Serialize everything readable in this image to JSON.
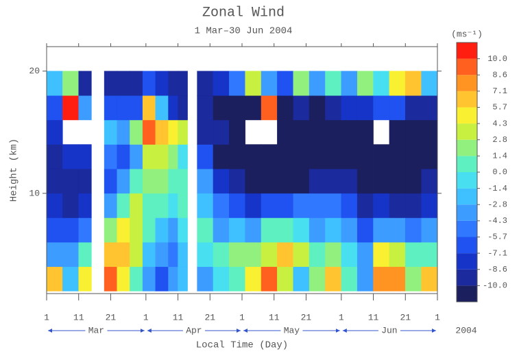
{
  "chart_data": {
    "type": "heatmap",
    "title": "Zonal Wind",
    "subtitle": "1 Mar–30 Jun 2004",
    "x_label": "Local Time (Day)",
    "y_label": "Height (km)",
    "year_label": "2004",
    "xlim": [
      0,
      122
    ],
    "xticks": [
      {
        "value": 0,
        "label": "1"
      },
      {
        "value": 10,
        "label": "11"
      },
      {
        "value": 20,
        "label": "21"
      },
      {
        "value": 31,
        "label": "1"
      },
      {
        "value": 41,
        "label": "11"
      },
      {
        "value": 51,
        "label": "21"
      },
      {
        "value": 61,
        "label": "1"
      },
      {
        "value": 71,
        "label": "11"
      },
      {
        "value": 81,
        "label": "21"
      },
      {
        "value": 92,
        "label": "1"
      },
      {
        "value": 102,
        "label": "11"
      },
      {
        "value": 112,
        "label": "21"
      },
      {
        "value": 122,
        "label": "1"
      }
    ],
    "months": [
      {
        "label": "Mar",
        "start": 0,
        "end": 31
      },
      {
        "label": "Apr",
        "start": 31,
        "end": 61
      },
      {
        "label": "May",
        "start": 61,
        "end": 92
      },
      {
        "label": "Jun",
        "start": 92,
        "end": 122
      }
    ],
    "ylim": [
      1.8,
      22
    ],
    "yticks": [
      10,
      20
    ],
    "xbins": [
      0,
      5,
      10,
      14,
      18,
      22,
      26,
      30,
      34,
      38,
      41,
      44,
      47,
      52,
      57,
      62,
      67,
      72,
      77,
      82,
      87,
      92,
      97,
      102,
      107,
      112,
      117,
      122
    ],
    "ybins": [
      2,
      4,
      6,
      8,
      10,
      12,
      14,
      16,
      18,
      20
    ],
    "values": [
      [
        6,
        -4,
        -6,
        -8,
        -9,
        -9,
        -8,
        -6,
        -2
      ],
      [
        -2,
        -3,
        -7,
        -9,
        -9,
        -8,
        null,
        10,
        2
      ],
      [
        5,
        0,
        -5,
        -8,
        -9,
        -8,
        null,
        -4,
        -9
      ],
      [
        null,
        null,
        null,
        null,
        null,
        null,
        null,
        null,
        null
      ],
      [
        9,
        6,
        2,
        -3,
        -6,
        -5,
        -2,
        -6,
        -9
      ],
      [
        5,
        7,
        5,
        1,
        -4,
        -6,
        -4,
        -7,
        -9
      ],
      [
        0,
        3,
        4,
        4,
        1,
        -3,
        2,
        -6,
        -9
      ],
      [
        -4,
        -2,
        0,
        1,
        2,
        3,
        9,
        7,
        -6
      ],
      [
        -6,
        -4,
        -2,
        0,
        2,
        4,
        6,
        -2,
        -8
      ],
      [
        -4,
        -5,
        -3,
        -1,
        0,
        2,
        5,
        -8,
        -9
      ],
      [
        -2,
        -2,
        -1,
        0,
        1,
        -1,
        3,
        -9,
        -9
      ],
      [
        null,
        null,
        null,
        null,
        null,
        null,
        null,
        null,
        null
      ],
      [
        -3,
        -1,
        0,
        -2,
        -4,
        -7,
        -9,
        -10,
        -9
      ],
      [
        -1,
        0,
        -3,
        -5,
        -8,
        -11,
        -10,
        -11,
        -8
      ],
      [
        0,
        2,
        -2,
        -6,
        -9,
        -11,
        -11,
        -11,
        -5
      ],
      [
        5,
        2,
        -3,
        -8,
        -11,
        -11,
        null,
        -11,
        4
      ],
      [
        9,
        4,
        0,
        -7,
        -11,
        -11,
        null,
        9,
        -4
      ],
      [
        4,
        6,
        1,
        -6,
        -11,
        -11,
        -11,
        -11,
        -6
      ],
      [
        -2,
        3,
        -1,
        -5,
        -11,
        -11,
        -11,
        -10,
        2
      ],
      [
        2,
        0,
        -3,
        -5,
        -10,
        -11,
        -11,
        -11,
        -3
      ],
      [
        6,
        2,
        -2,
        -5,
        -9,
        -11,
        -11,
        -9,
        0
      ],
      [
        0,
        -1,
        -3,
        -7,
        -10,
        -11,
        -11,
        -8,
        -4
      ],
      [
        -3,
        -4,
        -6,
        -9,
        -11,
        -11,
        -11,
        -8,
        2
      ],
      [
        8,
        5,
        -3,
        -8,
        -11,
        -11,
        null,
        -7,
        -1
      ],
      [
        8,
        3,
        -4,
        -9,
        -11,
        -11,
        -11,
        -6,
        5
      ],
      [
        2,
        0,
        -5,
        -9,
        -11,
        -11,
        -11,
        -9,
        6
      ],
      [
        7,
        1,
        -4,
        -8,
        -10,
        -11,
        -11,
        -10,
        -2
      ]
    ],
    "colorbar": {
      "label": "(ms⁻¹)",
      "levels": [
        {
          "value": -10,
          "label": "-10.0"
        },
        -8.6,
        -7.1,
        -5.7,
        -4.3,
        -2.8,
        -1.4,
        {
          "value": 0,
          "label": "0.0"
        },
        1.4,
        2.8,
        4.3,
        5.7,
        7.1,
        8.6,
        {
          "value": 10,
          "label": "10.0"
        }
      ],
      "colors": [
        "#1c1f5e",
        "#1b2a9c",
        "#1634c8",
        "#1f52f0",
        "#2f78ff",
        "#3c9cff",
        "#3fc0ff",
        "#48e0f0",
        "#5ef0c0",
        "#92f07e",
        "#c8f040",
        "#f8f030",
        "#ffc430",
        "#ff9422",
        "#ff6020",
        "#ff1e10"
      ]
    }
  }
}
